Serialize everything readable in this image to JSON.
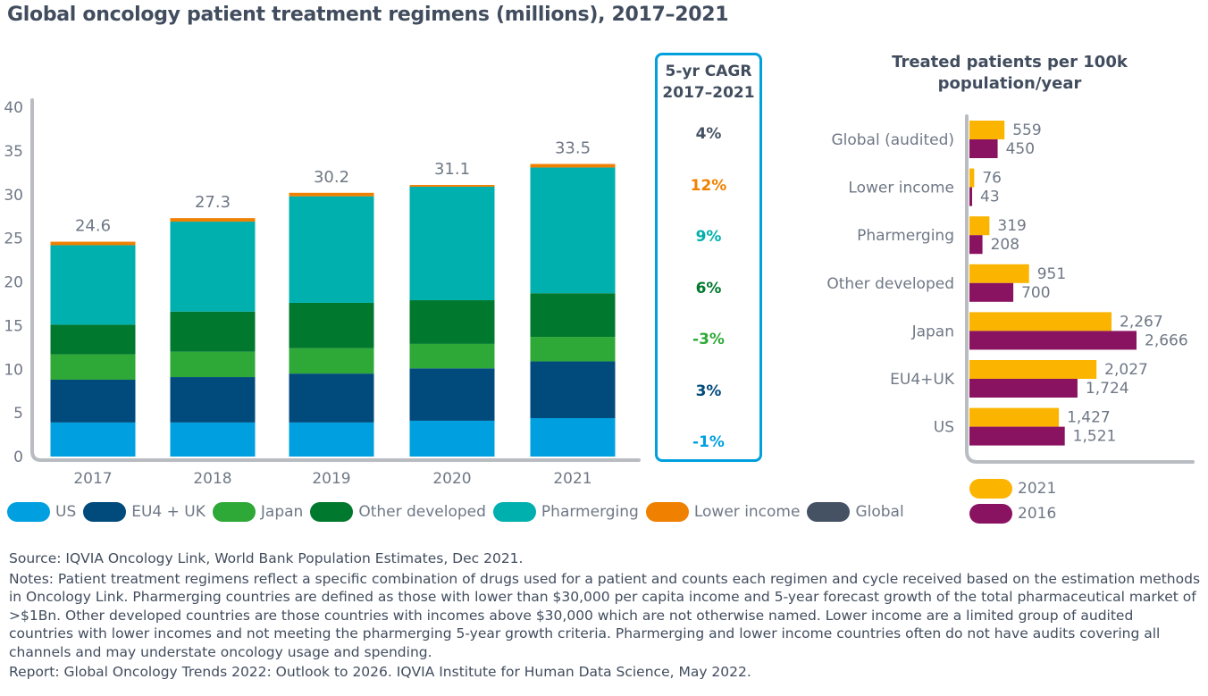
{
  "title": "Global oncology patient treatment regimens (millions), 2017–2021",
  "chart_data": [
    {
      "type": "bar",
      "stacked": true,
      "title": "Global oncology patient treatment regimens (millions), 2017–2021",
      "xlabel": "",
      "ylabel": "",
      "ylim": [
        0,
        40
      ],
      "yticks": [
        0,
        5,
        10,
        15,
        20,
        25,
        30,
        35,
        40
      ],
      "grid": false,
      "categories": [
        "2017",
        "2018",
        "2019",
        "2020",
        "2021"
      ],
      "totals": [
        "24.6",
        "27.3",
        "30.2",
        "31.1",
        "33.5"
      ],
      "series": [
        {
          "name": "US",
          "color": "#00a0e0",
          "values": [
            3.9,
            3.9,
            3.9,
            4.1,
            4.4
          ]
        },
        {
          "name": "EU4 + UK",
          "color": "#004a7c",
          "values": [
            4.9,
            5.2,
            5.6,
            6.0,
            6.5
          ]
        },
        {
          "name": "Japan",
          "color": "#2ea836",
          "values": [
            2.9,
            2.9,
            2.9,
            2.8,
            2.8
          ]
        },
        {
          "name": "Other developed",
          "color": "#00782d",
          "values": [
            3.4,
            4.6,
            5.2,
            5.0,
            5.0
          ]
        },
        {
          "name": "Pharmerging",
          "color": "#00b0ae",
          "values": [
            9.1,
            10.3,
            12.2,
            13.0,
            14.4
          ]
        },
        {
          "name": "Lower income",
          "color": "#f08000",
          "values": [
            0.4,
            0.4,
            0.4,
            0.2,
            0.4
          ]
        }
      ],
      "legend": [
        {
          "name": "US",
          "color": "#00a0e0"
        },
        {
          "name": "EU4 + UK",
          "color": "#004a7c"
        },
        {
          "name": "Japan",
          "color": "#2ea836"
        },
        {
          "name": "Other developed",
          "color": "#00782d"
        },
        {
          "name": "Pharmerging",
          "color": "#00b0ae"
        },
        {
          "name": "Lower income",
          "color": "#f08000"
        },
        {
          "name": "Global",
          "color": "#455263"
        }
      ],
      "legend_position": "bottom"
    },
    {
      "type": "table",
      "title": "5-yr CAGR 2017–2021",
      "rows": [
        {
          "name": "Global",
          "value": "4%",
          "color": "#455263"
        },
        {
          "name": "Lower income",
          "value": "12%",
          "color": "#f08000"
        },
        {
          "name": "Pharmerging",
          "value": "9%",
          "color": "#00b0ae"
        },
        {
          "name": "Other developed",
          "value": "6%",
          "color": "#00782d"
        },
        {
          "name": "Japan",
          "value": "-3%",
          "color": "#2ea836"
        },
        {
          "name": "EU4 + UK",
          "value": "3%",
          "color": "#004a7c"
        },
        {
          "name": "US",
          "value": "-1%",
          "color": "#00a0e0"
        }
      ]
    },
    {
      "type": "bar",
      "orientation": "horizontal",
      "title": "Treated patients per 100k population/year",
      "categories": [
        "Global (audited)",
        "Lower income",
        "Pharmerging",
        "Other developed",
        "Japan",
        "EU4+UK",
        "US"
      ],
      "xlim": [
        0,
        3000
      ],
      "series": [
        {
          "name": "2021",
          "color": "#fbb400",
          "values": [
            559,
            76,
            319,
            951,
            2267,
            2027,
            1427
          ],
          "labels": [
            "559",
            "76",
            "319",
            "951",
            "2,267",
            "2,027",
            "1,427"
          ]
        },
        {
          "name": "2016",
          "color": "#8a1361",
          "values": [
            450,
            43,
            208,
            700,
            2666,
            1724,
            1521
          ],
          "labels": [
            "450",
            "43",
            "208",
            "700",
            "2,666",
            "1,724",
            "1,521"
          ]
        }
      ],
      "legend_position": "bottom"
    }
  ],
  "footnotes": {
    "source": "Source: IQVIA Oncology Link, World Bank Population Estimates, Dec 2021.",
    "notes": "Notes: Patient treatment regimens reflect a specific combination of drugs used for a patient and counts each regimen and cycle received based on the estimation methods in Oncology Link. Pharmerging countries are defined as those with lower than $30,000 per capita income and 5-year forecast growth of the total pharmaceutical market of >$1Bn. Other developed countries are those countries with incomes above $30,000 which are not otherwise named. Lower income are a limited group of audited countries with lower incomes and not meeting the pharmerging 5-year growth criteria. Pharmerging and lower income countries often do not have audits covering all channels and may understate oncology usage and spending.",
    "report": "Report: Global Oncology Trends 2022: Outlook to 2026. IQVIA Institute for Human Data Science, May 2022."
  }
}
